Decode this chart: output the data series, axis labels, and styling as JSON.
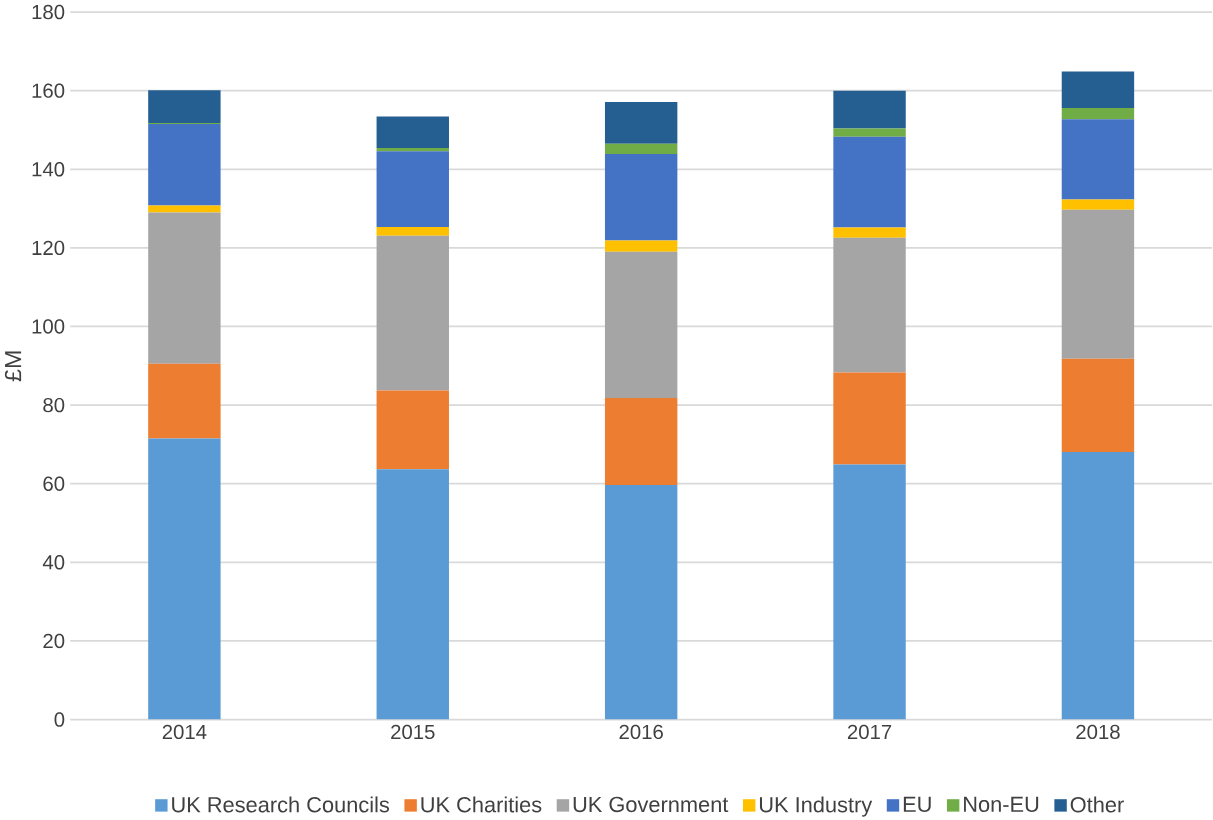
{
  "chart_data": {
    "type": "bar",
    "stacked": true,
    "ylabel": "£M",
    "categories": [
      "2014",
      "2015",
      "2016",
      "2017",
      "2018"
    ],
    "series": [
      {
        "name": "UK Research Councils",
        "color": "#5b9bd5",
        "values": [
          71.5,
          63.7,
          59.7,
          64.9,
          68.1
        ]
      },
      {
        "name": "UK Charities",
        "color": "#ed7d31",
        "values": [
          19,
          20,
          22.1,
          23.4,
          23.7
        ]
      },
      {
        "name": "UK Government",
        "color": "#a5a5a5",
        "values": [
          38.5,
          39.4,
          37.2,
          34.3,
          37.9
        ]
      },
      {
        "name": "UK Industry",
        "color": "#ffc000",
        "values": [
          1.8,
          2.2,
          2.9,
          2.6,
          2.6
        ]
      },
      {
        "name": "EU",
        "color": "#4472c4",
        "values": [
          20.7,
          19.3,
          22,
          23.1,
          20.4
        ]
      },
      {
        "name": "Non-EU",
        "color": "#70ad47",
        "values": [
          0.3,
          0.8,
          2.6,
          2.1,
          2.9
        ]
      },
      {
        "name": "Other",
        "color": "#255e91",
        "values": [
          8.3,
          8,
          10.6,
          9.6,
          9.3
        ]
      }
    ],
    "ylim": [
      0,
      180
    ],
    "yticks": [
      0,
      20,
      40,
      60,
      80,
      100,
      120,
      140,
      160,
      180
    ],
    "grid": "y",
    "legend": "bottom"
  }
}
